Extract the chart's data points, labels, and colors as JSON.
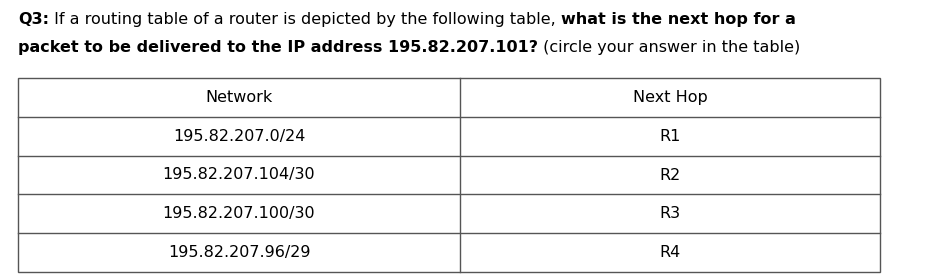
{
  "background_color": "#ffffff",
  "table_line_color": "#555555",
  "text_color": "#000000",
  "fig_width": 9.52,
  "fig_height": 2.77,
  "dpi": 100,
  "font_family": "Arial Narrow",
  "font_size": 11.5,
  "col_headers": [
    "Network",
    "Next Hop"
  ],
  "rows": [
    [
      "195.82.207.0/24",
      "R1"
    ],
    [
      "195.82.207.104/30",
      "R2"
    ],
    [
      "195.82.207.100/30",
      "R3"
    ],
    [
      "195.82.207.96/29",
      "R4"
    ]
  ],
  "q_line1_parts": [
    {
      "text": "Q3:",
      "bold": true
    },
    {
      "text": " If a routing table of a router is depicted by the following table, ",
      "bold": false
    },
    {
      "text": "what is the next hop for a",
      "bold": true
    }
  ],
  "q_line2_parts": [
    {
      "text": "packet to be delivered to the IP address 195.82.207.101?",
      "bold": true
    },
    {
      "text": " (circle your answer in the table)",
      "bold": false
    }
  ]
}
